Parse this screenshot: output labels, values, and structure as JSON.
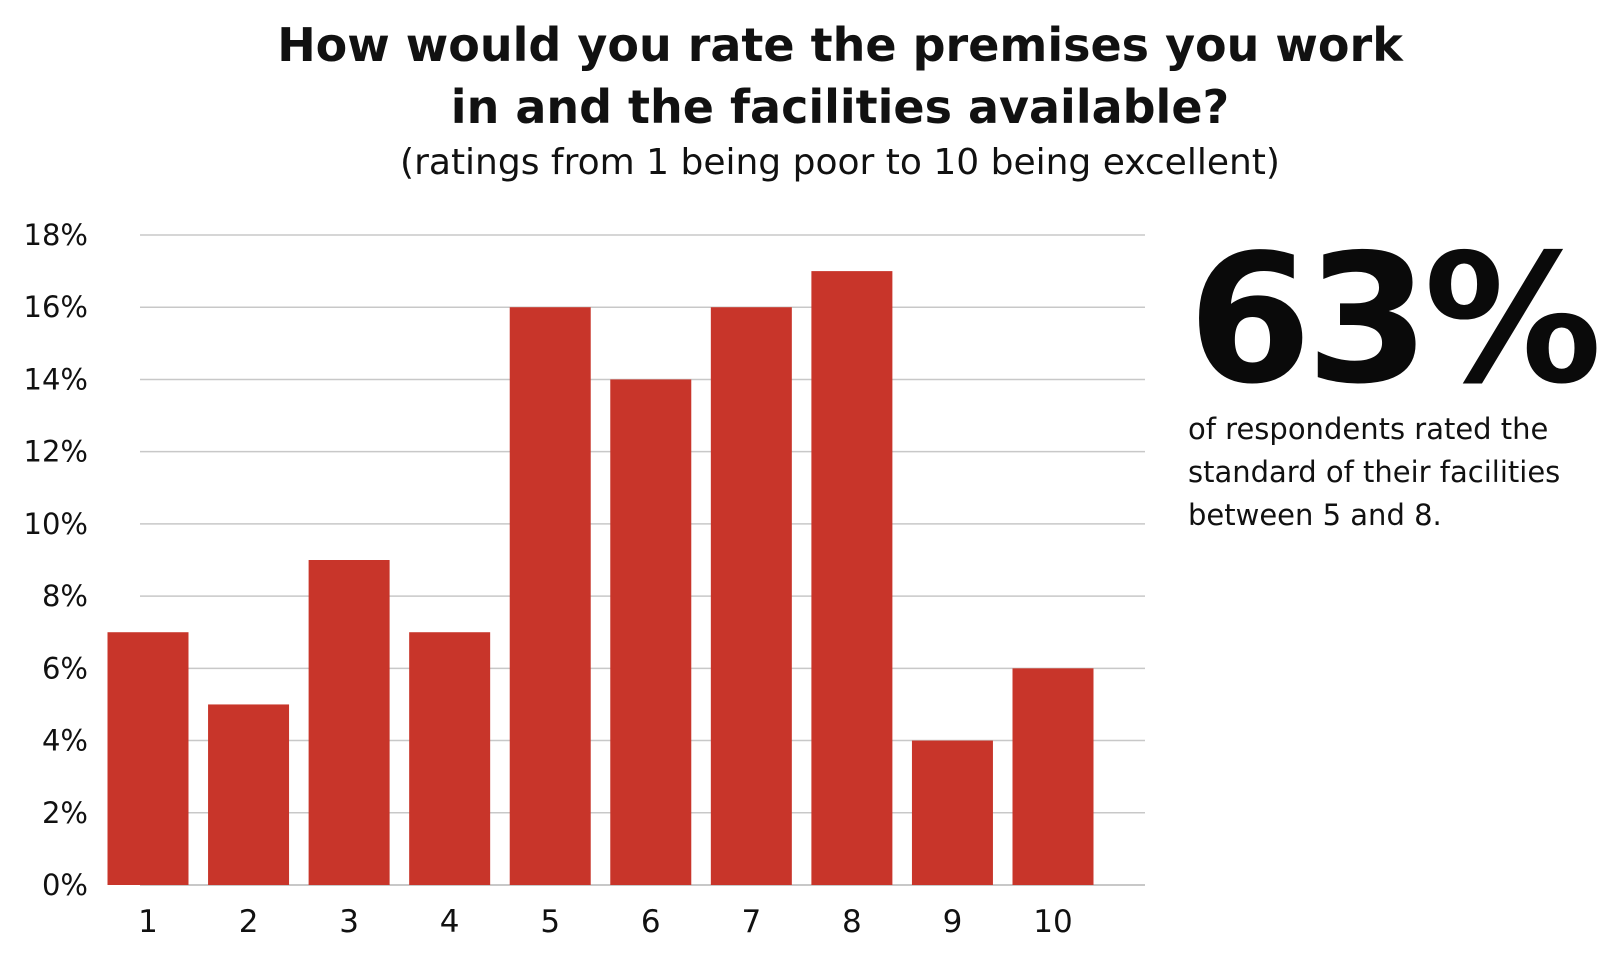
{
  "chart_data": {
    "type": "bar",
    "title_lines": [
      "How would you rate the premises you work",
      "in and the facilities available?"
    ],
    "subtitle": "(ratings from 1 being poor to 10 being excellent)",
    "categories": [
      "1",
      "2",
      "3",
      "4",
      "5",
      "6",
      "7",
      "8",
      "9",
      "10"
    ],
    "values": [
      7,
      5,
      9,
      7,
      16,
      14,
      16,
      17,
      4,
      6
    ],
    "value_unit": "%",
    "xlabel": "",
    "ylabel": "",
    "ylim": [
      0,
      18
    ],
    "yticks": [
      0,
      2,
      4,
      6,
      8,
      10,
      12,
      14,
      16,
      18
    ],
    "ytick_labels": [
      "0%",
      "2%",
      "4%",
      "6%",
      "8%",
      "10%",
      "12%",
      "14%",
      "16%",
      "18%"
    ],
    "grid": true,
    "legend": "none",
    "bar_color": "#c8352a",
    "grid_color": "#c8c8c8"
  },
  "callout": {
    "value": "63%",
    "text_lines": [
      "of respondents rated the",
      "standard of their facilities",
      "between 5 and 8."
    ]
  }
}
